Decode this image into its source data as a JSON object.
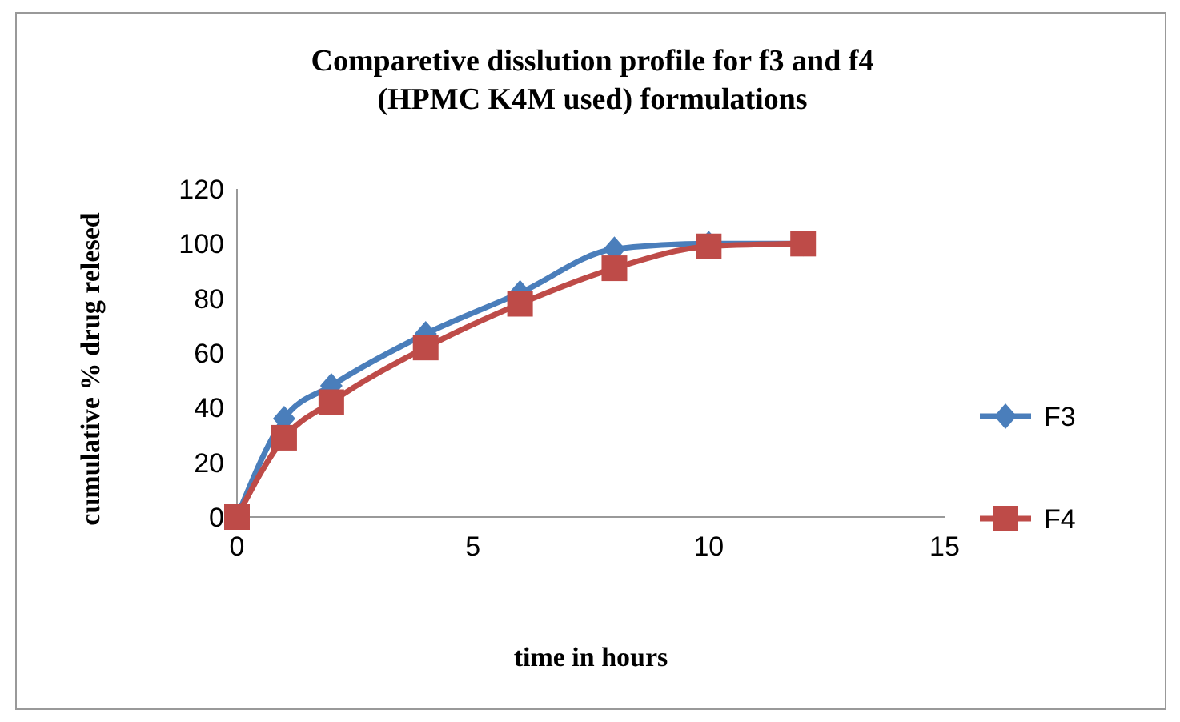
{
  "chart_data": {
    "type": "line",
    "title": "Comparetive disslution profile for f3 and f4\n(HPMC K4M used) formulations",
    "xlabel": "time in hours",
    "ylabel": "cumulative % drug relesed",
    "x": [
      0,
      1,
      2,
      4,
      6,
      8,
      10,
      12
    ],
    "series": [
      {
        "name": "F3",
        "color": "#4a7ebb",
        "marker": "diamond",
        "values": [
          0,
          36,
          48,
          67,
          82,
          98,
          100,
          100
        ]
      },
      {
        "name": "F4",
        "color": "#be4b48",
        "marker": "square",
        "values": [
          0,
          29,
          42,
          62,
          78,
          91,
          99,
          100
        ]
      }
    ],
    "xlim": [
      0,
      15
    ],
    "xticks": [
      0,
      5,
      10,
      15
    ],
    "ylim": [
      0,
      120
    ],
    "yticks": [
      0,
      20,
      40,
      60,
      80,
      100,
      120
    ],
    "grid": false,
    "legend": "right"
  }
}
